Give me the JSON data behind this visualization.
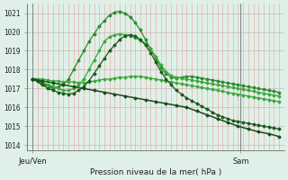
{
  "title": "Pression niveau de la mer( hPa )",
  "ylabel_ticks": [
    1014,
    1015,
    1016,
    1017,
    1018,
    1019,
    1020,
    1021
  ],
  "ylim": [
    1013.7,
    1021.5
  ],
  "xlim": [
    0,
    100
  ],
  "background_color": "#dff0e8",
  "grid_color_h": "#c8b8b8",
  "grid_color_v": "#e8a0a0",
  "x_label_left": "Jeu/Ven",
  "x_label_right": "Sam",
  "x_left_tick": 2,
  "x_right_tick": 83,
  "lines": [
    {
      "x": [
        2,
        3,
        4,
        5,
        6,
        7,
        8,
        9,
        10,
        12,
        14,
        16,
        18,
        20,
        22,
        24,
        26,
        28,
        30,
        32,
        34,
        36,
        38,
        40,
        42,
        44,
        46,
        48,
        50,
        52,
        54,
        56,
        58,
        60,
        62,
        64,
        66,
        68,
        70,
        72,
        74,
        76,
        78,
        80,
        82,
        84,
        86,
        88,
        90,
        92,
        94,
        96,
        98
      ],
      "y": [
        1017.5,
        1017.5,
        1017.4,
        1017.3,
        1017.3,
        1017.2,
        1017.2,
        1017.1,
        1017.0,
        1017.1,
        1017.2,
        1017.5,
        1018.0,
        1018.5,
        1019.0,
        1019.5,
        1019.9,
        1020.3,
        1020.6,
        1020.9,
        1021.05,
        1021.1,
        1021.0,
        1020.8,
        1020.5,
        1020.1,
        1019.6,
        1019.1,
        1018.6,
        1018.1,
        1017.8,
        1017.6,
        1017.55,
        1017.6,
        1017.65,
        1017.65,
        1017.6,
        1017.55,
        1017.5,
        1017.45,
        1017.4,
        1017.35,
        1017.3,
        1017.25,
        1017.2,
        1017.15,
        1017.1,
        1017.05,
        1017.0,
        1016.95,
        1016.9,
        1016.85,
        1016.8
      ],
      "color": "#2d8a2d",
      "lw": 0.9,
      "marker": "D",
      "ms": 1.5
    },
    {
      "x": [
        2,
        4,
        6,
        8,
        10,
        12,
        14,
        16,
        18,
        20,
        22,
        24,
        26,
        28,
        30,
        32,
        34,
        36,
        38,
        40,
        42,
        44,
        46,
        48,
        50,
        52,
        54,
        56,
        58,
        60,
        62,
        64,
        66,
        68,
        70,
        72,
        74,
        76,
        78,
        80,
        82,
        84,
        86,
        88,
        90,
        92,
        94,
        96,
        98
      ],
      "y": [
        1017.5,
        1017.4,
        1017.3,
        1017.2,
        1017.1,
        1017.0,
        1016.9,
        1016.9,
        1017.0,
        1017.2,
        1017.5,
        1018.0,
        1018.5,
        1019.0,
        1019.5,
        1019.75,
        1019.85,
        1019.9,
        1019.85,
        1019.8,
        1019.7,
        1019.55,
        1019.4,
        1019.1,
        1018.7,
        1018.25,
        1017.9,
        1017.7,
        1017.6,
        1017.55,
        1017.5,
        1017.45,
        1017.4,
        1017.35,
        1017.3,
        1017.25,
        1017.2,
        1017.15,
        1017.1,
        1017.05,
        1017.0,
        1016.95,
        1016.9,
        1016.85,
        1016.8,
        1016.75,
        1016.7,
        1016.65,
        1016.6
      ],
      "color": "#3aaa3a",
      "lw": 0.9,
      "marker": "D",
      "ms": 1.5
    },
    {
      "x": [
        2,
        4,
        6,
        8,
        10,
        12,
        14,
        16,
        18,
        20,
        22,
        24,
        26,
        28,
        30,
        32,
        34,
        36,
        38,
        40,
        42,
        44,
        46,
        48,
        50,
        52,
        54,
        56,
        58,
        60,
        62,
        64,
        66,
        68,
        70,
        72,
        74,
        76,
        78,
        80,
        82,
        84,
        86,
        88,
        90,
        92,
        94,
        96,
        98
      ],
      "y": [
        1017.5,
        1017.5,
        1017.5,
        1017.45,
        1017.4,
        1017.4,
        1017.35,
        1017.35,
        1017.35,
        1017.3,
        1017.3,
        1017.35,
        1017.4,
        1017.45,
        1017.5,
        1017.5,
        1017.55,
        1017.6,
        1017.6,
        1017.65,
        1017.65,
        1017.65,
        1017.6,
        1017.55,
        1017.5,
        1017.45,
        1017.4,
        1017.35,
        1017.3,
        1017.25,
        1017.2,
        1017.15,
        1017.1,
        1017.05,
        1017.0,
        1016.95,
        1016.9,
        1016.85,
        1016.8,
        1016.75,
        1016.7,
        1016.65,
        1016.6,
        1016.55,
        1016.5,
        1016.45,
        1016.4,
        1016.35,
        1016.3
      ],
      "color": "#3aaa3a",
      "lw": 0.9,
      "marker": "D",
      "ms": 1.5
    },
    {
      "x": [
        2,
        4,
        6,
        8,
        10,
        12,
        14,
        16,
        18,
        20,
        22,
        24,
        26,
        28,
        30,
        32,
        34,
        36,
        38,
        40,
        42,
        44,
        46,
        48,
        50,
        52,
        54,
        56,
        58,
        60,
        62,
        64,
        66,
        68,
        70,
        72,
        74,
        76,
        78,
        80,
        82,
        84,
        86,
        88,
        90,
        92,
        94,
        96,
        98
      ],
      "y": [
        1017.5,
        1017.4,
        1017.2,
        1017.0,
        1016.9,
        1016.8,
        1016.75,
        1016.7,
        1016.75,
        1016.9,
        1017.1,
        1017.4,
        1017.8,
        1018.2,
        1018.6,
        1019.0,
        1019.3,
        1019.6,
        1019.8,
        1019.85,
        1019.8,
        1019.6,
        1019.3,
        1018.9,
        1018.4,
        1017.9,
        1017.5,
        1017.2,
        1016.9,
        1016.7,
        1016.5,
        1016.35,
        1016.2,
        1016.05,
        1015.9,
        1015.75,
        1015.6,
        1015.5,
        1015.4,
        1015.3,
        1015.25,
        1015.2,
        1015.15,
        1015.1,
        1015.05,
        1015.0,
        1014.95,
        1014.9,
        1014.85
      ],
      "color": "#1a5a1a",
      "lw": 0.9,
      "marker": "D",
      "ms": 1.5
    },
    {
      "x": [
        2,
        6,
        10,
        14,
        18,
        22,
        26,
        30,
        34,
        38,
        42,
        46,
        50,
        54,
        58,
        62,
        66,
        70,
        74,
        78,
        82,
        86,
        90,
        94,
        98
      ],
      "y": [
        1017.5,
        1017.4,
        1017.3,
        1017.2,
        1017.1,
        1017.0,
        1016.9,
        1016.8,
        1016.7,
        1016.6,
        1016.5,
        1016.4,
        1016.3,
        1016.2,
        1016.1,
        1016.0,
        1015.8,
        1015.6,
        1015.4,
        1015.2,
        1015.0,
        1014.85,
        1014.7,
        1014.6,
        1014.45
      ],
      "color": "#1a4a1a",
      "lw": 1.1,
      "marker": "D",
      "ms": 1.5
    }
  ]
}
